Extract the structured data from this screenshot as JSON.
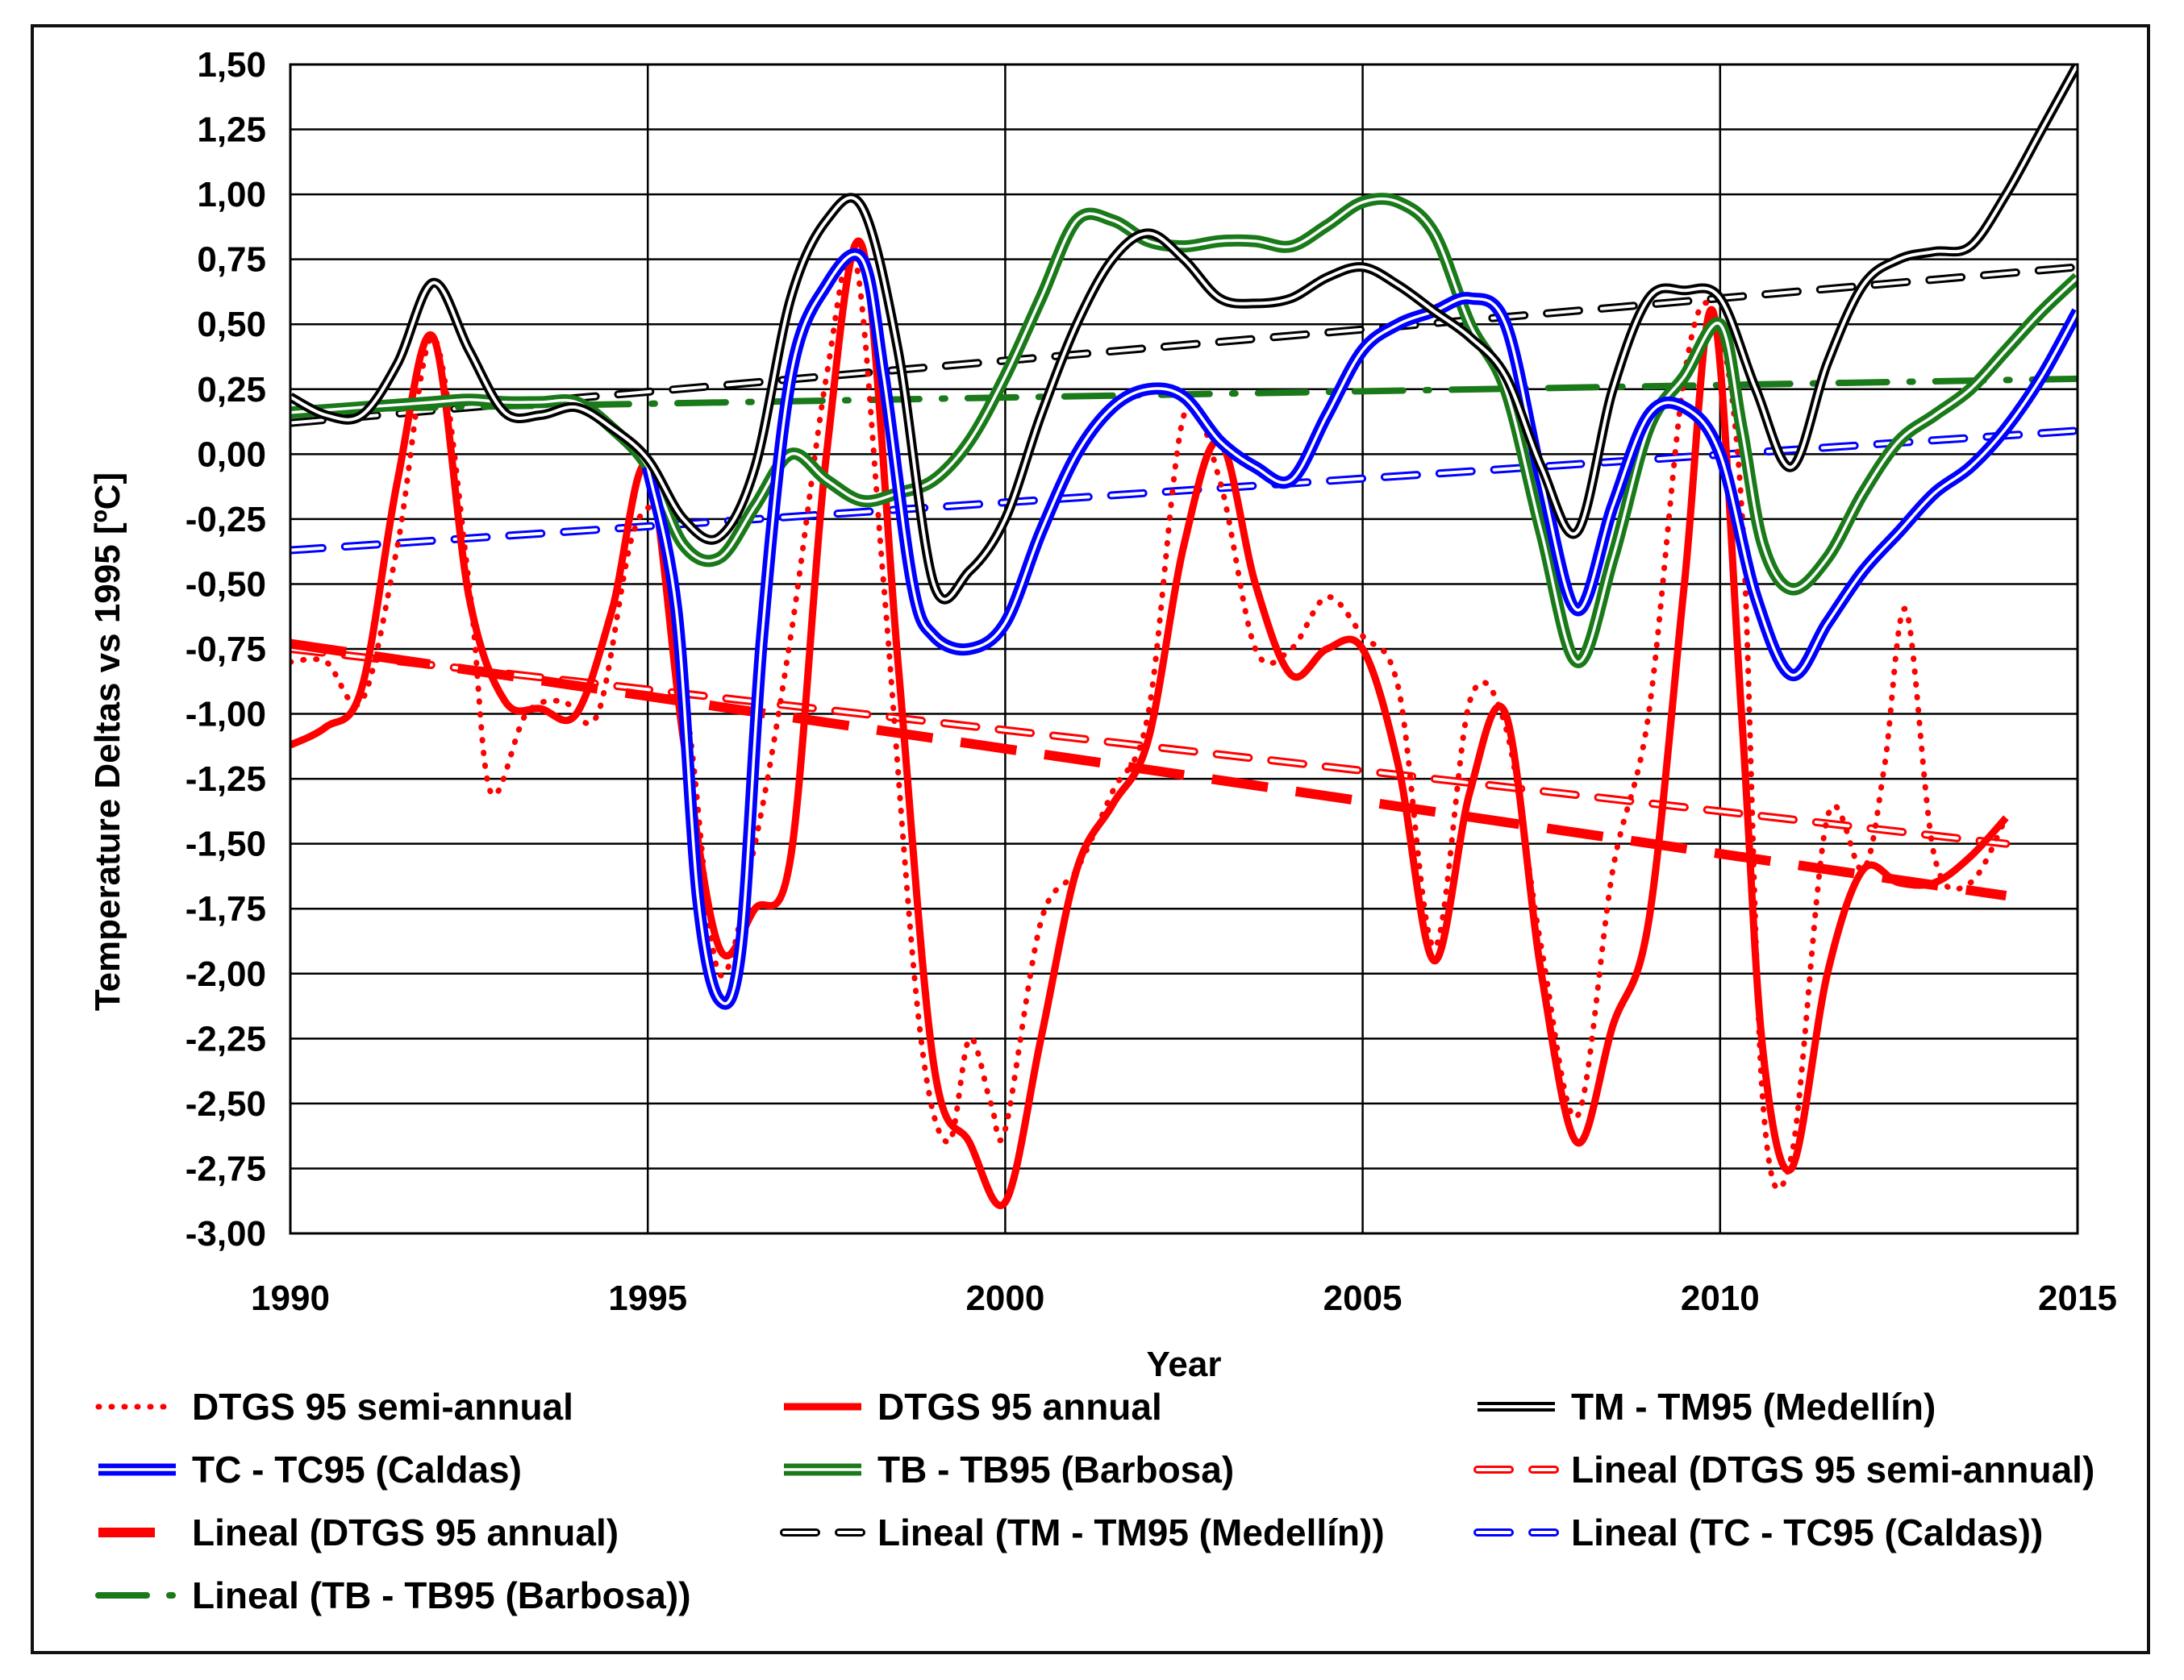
{
  "chart_data": {
    "type": "line",
    "xlabel": "Year",
    "ylabel": "Temperature Deltas vs 1995 [ºC]",
    "xlim": [
      1990,
      2015
    ],
    "ylim": [
      -3.0,
      1.5
    ],
    "x_ticks": [
      1990,
      1995,
      2000,
      2005,
      2010,
      2015
    ],
    "x_tick_labels": [
      "1990",
      "1995",
      "2000",
      "2005",
      "2010",
      "2015"
    ],
    "y_ticks": [
      1.5,
      1.25,
      1.0,
      0.75,
      0.5,
      0.25,
      0.0,
      -0.25,
      -0.5,
      -0.75,
      -1.0,
      -1.25,
      -1.5,
      -1.75,
      -2.0,
      -2.25,
      -2.5,
      -2.75,
      -3.0
    ],
    "y_tick_labels": [
      "1,50",
      "1,25",
      "1,00",
      "0,75",
      "0,50",
      "0,25",
      "0,00",
      "-0,25",
      "-0,50",
      "-0,75",
      "-1,00",
      "-1,25",
      "-1,50",
      "-1,75",
      "-2,00",
      "-2,25",
      "-2,50",
      "-2,75",
      "-3,00"
    ],
    "grid": true,
    "legend_position": "bottom",
    "series": [
      {
        "name": "DTGS 95 semi-annual",
        "key": "dtgs_semi",
        "color": "#ff0000",
        "style": "dotted",
        "points": [
          [
            1990,
            -0.8
          ],
          [
            1990.5,
            -0.8
          ],
          [
            1991,
            -0.95
          ],
          [
            1991.5,
            -0.35
          ],
          [
            1992,
            0.45
          ],
          [
            1992.5,
            -0.5
          ],
          [
            1992.8,
            -1.3
          ],
          [
            1993.3,
            -1.0
          ],
          [
            1993.8,
            -0.95
          ],
          [
            1994.3,
            -1.0
          ],
          [
            1994.8,
            -0.3
          ],
          [
            1995.2,
            -0.3
          ],
          [
            1995.6,
            -1.1
          ],
          [
            1996.0,
            -2.0
          ],
          [
            1996.5,
            -1.5
          ],
          [
            1997.0,
            -0.7
          ],
          [
            1997.5,
            0.3
          ],
          [
            1997.9,
            0.75
          ],
          [
            1998.3,
            -0.5
          ],
          [
            1998.8,
            -2.2
          ],
          [
            1999.2,
            -2.65
          ],
          [
            1999.5,
            -2.25
          ],
          [
            1999.8,
            -2.5
          ],
          [
            2000.0,
            -2.6
          ],
          [
            2000.5,
            -1.8
          ],
          [
            2001.0,
            -1.6
          ],
          [
            2001.5,
            -1.3
          ],
          [
            2002.0,
            -1.0
          ],
          [
            2002.5,
            0.15
          ],
          [
            2003.0,
            -0.1
          ],
          [
            2003.5,
            -0.75
          ],
          [
            2004.0,
            -0.75
          ],
          [
            2004.5,
            -0.55
          ],
          [
            2005.0,
            -0.7
          ],
          [
            2005.5,
            -0.9
          ],
          [
            2006.0,
            -1.9
          ],
          [
            2006.5,
            -0.95
          ],
          [
            2007.0,
            -1.05
          ],
          [
            2007.5,
            -1.9
          ],
          [
            2008.0,
            -2.55
          ],
          [
            2008.5,
            -1.6
          ],
          [
            2009.0,
            -1.0
          ],
          [
            2009.5,
            0.3
          ],
          [
            2009.9,
            0.55
          ],
          [
            2010.3,
            -0.2
          ],
          [
            2010.6,
            -2.5
          ],
          [
            2011.0,
            -2.7
          ],
          [
            2011.5,
            -1.4
          ],
          [
            2012.0,
            -1.6
          ],
          [
            2012.3,
            -1.2
          ],
          [
            2012.6,
            -0.6
          ],
          [
            2013.0,
            -1.55
          ],
          [
            2013.5,
            -1.65
          ],
          [
            2014.0,
            -1.4
          ]
        ]
      },
      {
        "name": "DTGS 95 annual",
        "key": "dtgs_annual",
        "color": "#ff0000",
        "style": "solid-thick",
        "points": [
          [
            1990,
            -1.12
          ],
          [
            1990.5,
            -1.05
          ],
          [
            1991,
            -0.9
          ],
          [
            1991.5,
            -0.1
          ],
          [
            1992,
            0.45
          ],
          [
            1992.5,
            -0.55
          ],
          [
            1993,
            -0.95
          ],
          [
            1993.5,
            -0.98
          ],
          [
            1994,
            -1.0
          ],
          [
            1994.5,
            -0.6
          ],
          [
            1995,
            -0.05
          ],
          [
            1995.5,
            -1.1
          ],
          [
            1996,
            -1.9
          ],
          [
            1996.5,
            -1.75
          ],
          [
            1997,
            -1.55
          ],
          [
            1997.5,
            0.0
          ],
          [
            1998,
            0.8
          ],
          [
            1998.5,
            -0.8
          ],
          [
            1999,
            -2.35
          ],
          [
            1999.5,
            -2.65
          ],
          [
            2000,
            -2.88
          ],
          [
            2000.5,
            -2.25
          ],
          [
            2001,
            -1.6
          ],
          [
            2001.5,
            -1.35
          ],
          [
            2002,
            -1.1
          ],
          [
            2002.5,
            -0.35
          ],
          [
            2003,
            0.05
          ],
          [
            2003.5,
            -0.5
          ],
          [
            2004,
            -0.85
          ],
          [
            2004.5,
            -0.75
          ],
          [
            2005,
            -0.75
          ],
          [
            2005.5,
            -1.2
          ],
          [
            2006,
            -1.95
          ],
          [
            2006.5,
            -1.3
          ],
          [
            2007,
            -1.0
          ],
          [
            2007.5,
            -2.0
          ],
          [
            2008,
            -2.65
          ],
          [
            2008.5,
            -2.2
          ],
          [
            2009,
            -1.8
          ],
          [
            2009.5,
            -0.5
          ],
          [
            2009.9,
            0.55
          ],
          [
            2010.3,
            -1.0
          ],
          [
            2010.6,
            -2.3
          ],
          [
            2011,
            -2.75
          ],
          [
            2011.5,
            -2.0
          ],
          [
            2012,
            -1.6
          ],
          [
            2012.5,
            -1.65
          ],
          [
            2013,
            -1.65
          ],
          [
            2013.5,
            -1.55
          ],
          [
            2014,
            -1.4
          ]
        ]
      },
      {
        "name": "TM - TM95 (Medellín)",
        "key": "tm",
        "color": "#000000",
        "style": "double",
        "points": [
          [
            1990,
            0.22
          ],
          [
            1990.5,
            0.15
          ],
          [
            1991,
            0.15
          ],
          [
            1991.5,
            0.35
          ],
          [
            1992,
            0.66
          ],
          [
            1992.5,
            0.4
          ],
          [
            1993,
            0.16
          ],
          [
            1993.5,
            0.15
          ],
          [
            1994,
            0.18
          ],
          [
            1994.5,
            0.1
          ],
          [
            1995,
            -0.02
          ],
          [
            1995.5,
            -0.25
          ],
          [
            1996,
            -0.32
          ],
          [
            1996.5,
            -0.05
          ],
          [
            1997,
            0.6
          ],
          [
            1997.5,
            0.9
          ],
          [
            1998,
            0.95
          ],
          [
            1998.5,
            0.4
          ],
          [
            1999,
            -0.5
          ],
          [
            1999.5,
            -0.45
          ],
          [
            2000,
            -0.25
          ],
          [
            2000.5,
            0.15
          ],
          [
            2001,
            0.5
          ],
          [
            2001.5,
            0.75
          ],
          [
            2002,
            0.85
          ],
          [
            2002.5,
            0.75
          ],
          [
            2003,
            0.6
          ],
          [
            2003.5,
            0.58
          ],
          [
            2004,
            0.6
          ],
          [
            2004.5,
            0.68
          ],
          [
            2005,
            0.72
          ],
          [
            2005.5,
            0.65
          ],
          [
            2006,
            0.55
          ],
          [
            2006.5,
            0.45
          ],
          [
            2007,
            0.3
          ],
          [
            2007.5,
            -0.05
          ],
          [
            2008,
            -0.3
          ],
          [
            2008.5,
            0.25
          ],
          [
            2009,
            0.6
          ],
          [
            2009.5,
            0.63
          ],
          [
            2010,
            0.6
          ],
          [
            2010.5,
            0.25
          ],
          [
            2011,
            -0.05
          ],
          [
            2011.5,
            0.35
          ],
          [
            2012,
            0.65
          ],
          [
            2012.5,
            0.75
          ],
          [
            2013,
            0.78
          ],
          [
            2013.5,
            0.8
          ],
          [
            2014,
            1.0
          ],
          [
            2014.5,
            1.25
          ],
          [
            2015,
            1.5
          ]
        ]
      },
      {
        "name": "TC - TC95 (Caldas)",
        "key": "tc",
        "color": "#0000ff",
        "style": "double-thick",
        "points": [
          [
            1995,
            -0.05
          ],
          [
            1995.4,
            -0.6
          ],
          [
            1995.7,
            -1.7
          ],
          [
            1996,
            -2.1
          ],
          [
            1996.3,
            -1.9
          ],
          [
            1996.6,
            -0.7
          ],
          [
            1997,
            0.3
          ],
          [
            1997.5,
            0.65
          ],
          [
            1998,
            0.75
          ],
          [
            1998.3,
            0.3
          ],
          [
            1998.7,
            -0.5
          ],
          [
            1999,
            -0.7
          ],
          [
            1999.5,
            -0.75
          ],
          [
            2000,
            -0.65
          ],
          [
            2000.5,
            -0.3
          ],
          [
            2001,
            0.0
          ],
          [
            2001.5,
            0.18
          ],
          [
            2002,
            0.25
          ],
          [
            2002.5,
            0.22
          ],
          [
            2003,
            0.05
          ],
          [
            2003.5,
            -0.05
          ],
          [
            2004,
            -0.1
          ],
          [
            2004.5,
            0.15
          ],
          [
            2005,
            0.4
          ],
          [
            2005.5,
            0.5
          ],
          [
            2006,
            0.55
          ],
          [
            2006.5,
            0.6
          ],
          [
            2007,
            0.5
          ],
          [
            2007.5,
            -0.1
          ],
          [
            2008,
            -0.6
          ],
          [
            2008.5,
            -0.2
          ],
          [
            2009,
            0.15
          ],
          [
            2009.5,
            0.18
          ],
          [
            2010,
            0.0
          ],
          [
            2010.5,
            -0.55
          ],
          [
            2011,
            -0.85
          ],
          [
            2011.5,
            -0.65
          ],
          [
            2012,
            -0.45
          ],
          [
            2012.5,
            -0.3
          ],
          [
            2013,
            -0.15
          ],
          [
            2013.5,
            -0.05
          ],
          [
            2014,
            0.1
          ],
          [
            2014.5,
            0.3
          ],
          [
            2015,
            0.55
          ]
        ]
      },
      {
        "name": "TB - TB95 (Barbosa)",
        "key": "tb",
        "color": "#1a7a1a",
        "style": "double-thick",
        "points": [
          [
            1990,
            0.16
          ],
          [
            1990.5,
            0.17
          ],
          [
            1991,
            0.18
          ],
          [
            1991.5,
            0.19
          ],
          [
            1992,
            0.2
          ],
          [
            1992.5,
            0.21
          ],
          [
            1993,
            0.2
          ],
          [
            1993.5,
            0.2
          ],
          [
            1994,
            0.2
          ],
          [
            1994.5,
            0.1
          ],
          [
            1995,
            -0.05
          ],
          [
            1995.5,
            -0.35
          ],
          [
            1996,
            -0.4
          ],
          [
            1996.5,
            -0.2
          ],
          [
            1997,
            0.0
          ],
          [
            1997.5,
            -0.1
          ],
          [
            1998,
            -0.18
          ],
          [
            1998.5,
            -0.15
          ],
          [
            1999,
            -0.1
          ],
          [
            1999.5,
            0.05
          ],
          [
            2000,
            0.3
          ],
          [
            2000.5,
            0.6
          ],
          [
            2001,
            0.9
          ],
          [
            2001.5,
            0.9
          ],
          [
            2002,
            0.82
          ],
          [
            2002.5,
            0.8
          ],
          [
            2003,
            0.82
          ],
          [
            2003.5,
            0.82
          ],
          [
            2004,
            0.8
          ],
          [
            2004.5,
            0.88
          ],
          [
            2005,
            0.97
          ],
          [
            2005.5,
            0.97
          ],
          [
            2006,
            0.85
          ],
          [
            2006.5,
            0.5
          ],
          [
            2007,
            0.25
          ],
          [
            2007.5,
            -0.3
          ],
          [
            2008,
            -0.8
          ],
          [
            2008.5,
            -0.4
          ],
          [
            2009,
            0.1
          ],
          [
            2009.5,
            0.3
          ],
          [
            2010,
            0.5
          ],
          [
            2010.3,
            0.1
          ],
          [
            2010.6,
            -0.35
          ],
          [
            2011,
            -0.52
          ],
          [
            2011.5,
            -0.4
          ],
          [
            2012,
            -0.15
          ],
          [
            2012.5,
            0.05
          ],
          [
            2013,
            0.15
          ],
          [
            2013.5,
            0.25
          ],
          [
            2014,
            0.4
          ],
          [
            2014.5,
            0.55
          ],
          [
            2015,
            0.68
          ]
        ]
      },
      {
        "name": "Lineal (DTGS 95 semi-annual)",
        "key": "lin_dtgs_semi",
        "color": "#ff0000",
        "style": "dash-hollow",
        "points": [
          [
            1990,
            -0.75
          ],
          [
            2014,
            -1.5
          ]
        ]
      },
      {
        "name": "Lineal (DTGS 95 annual)",
        "key": "lin_dtgs_annual",
        "color": "#ff0000",
        "style": "dash-thick",
        "points": [
          [
            1990,
            -0.73
          ],
          [
            2014,
            -1.7
          ]
        ]
      },
      {
        "name": "Lineal (TM - TM95 (Medellín))",
        "key": "lin_tm",
        "color": "#000000",
        "style": "dash-hollow",
        "points": [
          [
            1990,
            0.12
          ],
          [
            2015,
            0.72
          ]
        ]
      },
      {
        "name": "Lineal (TC - TC95 (Caldas))",
        "key": "lin_tc",
        "color": "#0000ff",
        "style": "dash-hollow",
        "points": [
          [
            1990,
            -0.37
          ],
          [
            2015,
            0.09
          ]
        ]
      },
      {
        "name": "Lineal (TB - TB95 (Barbosa))",
        "key": "lin_tb",
        "color": "#1a7a1a",
        "style": "dash-dot",
        "points": [
          [
            1990,
            0.17
          ],
          [
            2015,
            0.29
          ]
        ]
      }
    ],
    "legend": [
      {
        "key": "dtgs_semi",
        "label": "DTGS 95 semi-annual"
      },
      {
        "key": "dtgs_annual",
        "label": "DTGS 95 annual"
      },
      {
        "key": "tm",
        "label": "TM - TM95 (Medellín)"
      },
      {
        "key": "tc",
        "label": "TC - TC95 (Caldas)"
      },
      {
        "key": "tb",
        "label": "TB - TB95 (Barbosa)"
      },
      {
        "key": "lin_dtgs_semi",
        "label": "Lineal (DTGS 95 semi-annual)"
      },
      {
        "key": "lin_dtgs_annual",
        "label": "Lineal (DTGS 95 annual)"
      },
      {
        "key": "lin_tm",
        "label": "Lineal (TM - TM95 (Medellín))"
      },
      {
        "key": "lin_tc",
        "label": "Lineal (TC - TC95 (Caldas))"
      },
      {
        "key": "lin_tb",
        "label": "Lineal (TB - TB95 (Barbosa))"
      }
    ]
  }
}
